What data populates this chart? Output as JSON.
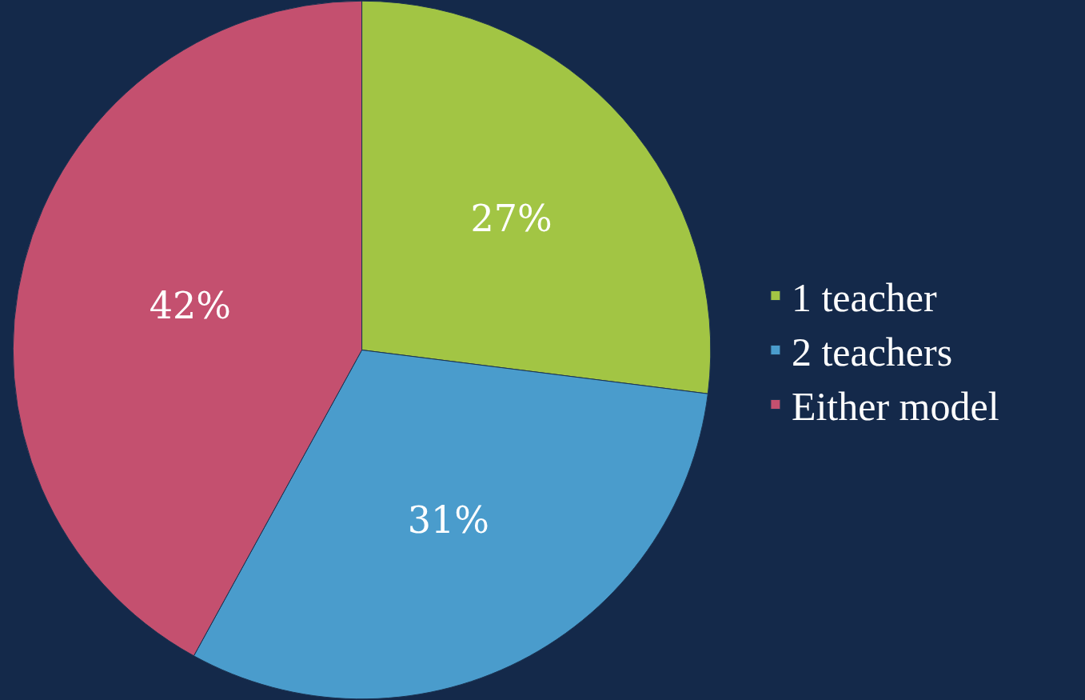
{
  "chart_data": {
    "type": "pie",
    "categories": [
      "1 teacher",
      "2 teachers",
      "Either model"
    ],
    "values": [
      27,
      31,
      42
    ],
    "colors": [
      "#a2c544",
      "#4a9ccc",
      "#c4506f"
    ],
    "value_labels": [
      "27%",
      "31%",
      "42%"
    ],
    "legend": "right"
  }
}
